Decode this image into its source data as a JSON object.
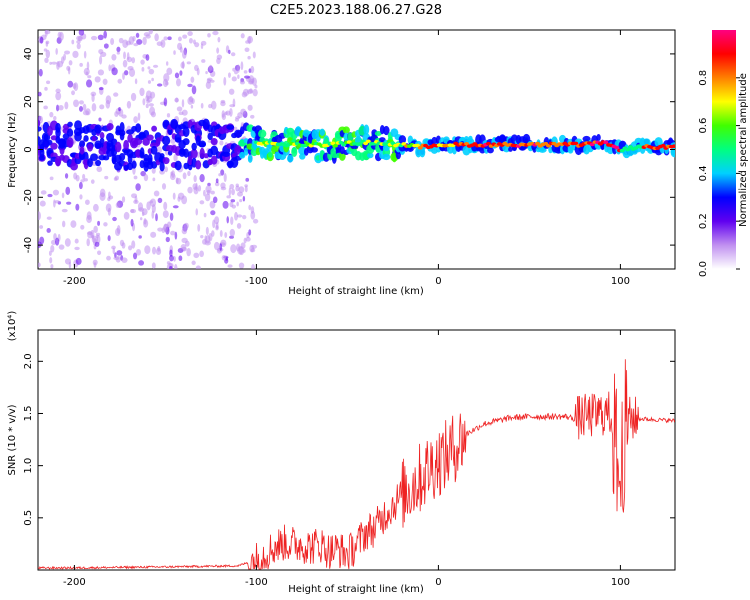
{
  "title": "C2E5.2023.188.06.27.G28",
  "chart_data": [
    {
      "type": "heatmap",
      "xlabel": "Height of straight line (km)",
      "ylabel": "Frequency (Hz)",
      "xlim": [
        -220,
        130
      ],
      "ylim": [
        -50,
        50
      ],
      "x_ticks": [
        -200,
        -100,
        0,
        100
      ],
      "y_ticks": [
        -40,
        -20,
        0,
        20,
        40
      ],
      "colorbar": {
        "label": "Normalized spectral amplitude",
        "range": [
          0.0,
          1.0
        ],
        "ticks": [
          0.0,
          0.2,
          0.4,
          0.6,
          0.8
        ],
        "colors": [
          "#ffffff",
          "#c090f0",
          "#6000f0",
          "#0000ff",
          "#00d0ff",
          "#00ff80",
          "#40ff00",
          "#ffff00",
          "#ff8000",
          "#ff0000",
          "#ff0080"
        ]
      },
      "ridge": {
        "x": [
          -220,
          -180,
          -140,
          -100,
          -80,
          -60,
          -40,
          -20,
          -10,
          0,
          20,
          40,
          60,
          80,
          90,
          100,
          110,
          130
        ],
        "y": [
          2,
          1,
          2,
          3,
          2,
          2,
          3,
          2,
          1,
          2,
          2,
          2,
          2,
          2,
          3,
          0,
          1,
          1
        ]
      }
    },
    {
      "type": "line",
      "xlabel": "Height of straight line (km)",
      "ylabel": "SNR (10 * v/v)",
      "multiplier": "(x10⁴)",
      "xlim": [
        -220,
        130
      ],
      "ylim": [
        0,
        2.3
      ],
      "x_ticks": [
        -200,
        -100,
        0,
        100
      ],
      "y_ticks": [
        0.5,
        1.0,
        1.5,
        2.0
      ],
      "y_tick_labels": [
        "0.5",
        "1.0",
        "1.5",
        "2.0"
      ],
      "color": "#ee2222",
      "series": [
        {
          "x": [
            -220,
            -200,
            -150,
            -110,
            -100,
            -95,
            -90,
            -85,
            -80,
            -75,
            -70,
            -65,
            -60,
            -55,
            -50,
            -45,
            -40,
            -35,
            -30,
            -25,
            -20,
            -15,
            -10,
            -5,
            0,
            5,
            10,
            15,
            20,
            25,
            30,
            40,
            50,
            60,
            70,
            75,
            80,
            85,
            90,
            95,
            98,
            100,
            102,
            105,
            110,
            120,
            130
          ],
          "y": [
            0.02,
            0.02,
            0.03,
            0.04,
            0.1,
            0.16,
            0.22,
            0.26,
            0.25,
            0.24,
            0.22,
            0.25,
            0.18,
            0.2,
            0.15,
            0.24,
            0.36,
            0.4,
            0.52,
            0.62,
            0.72,
            0.8,
            0.88,
            0.98,
            1.05,
            1.1,
            1.2,
            1.3,
            1.35,
            1.4,
            1.42,
            1.46,
            1.47,
            1.47,
            1.47,
            1.45,
            1.47,
            1.48,
            1.5,
            1.5,
            1.1,
            0.8,
            1.3,
            1.45,
            1.45,
            1.44,
            1.43
          ]
        }
      ]
    }
  ]
}
